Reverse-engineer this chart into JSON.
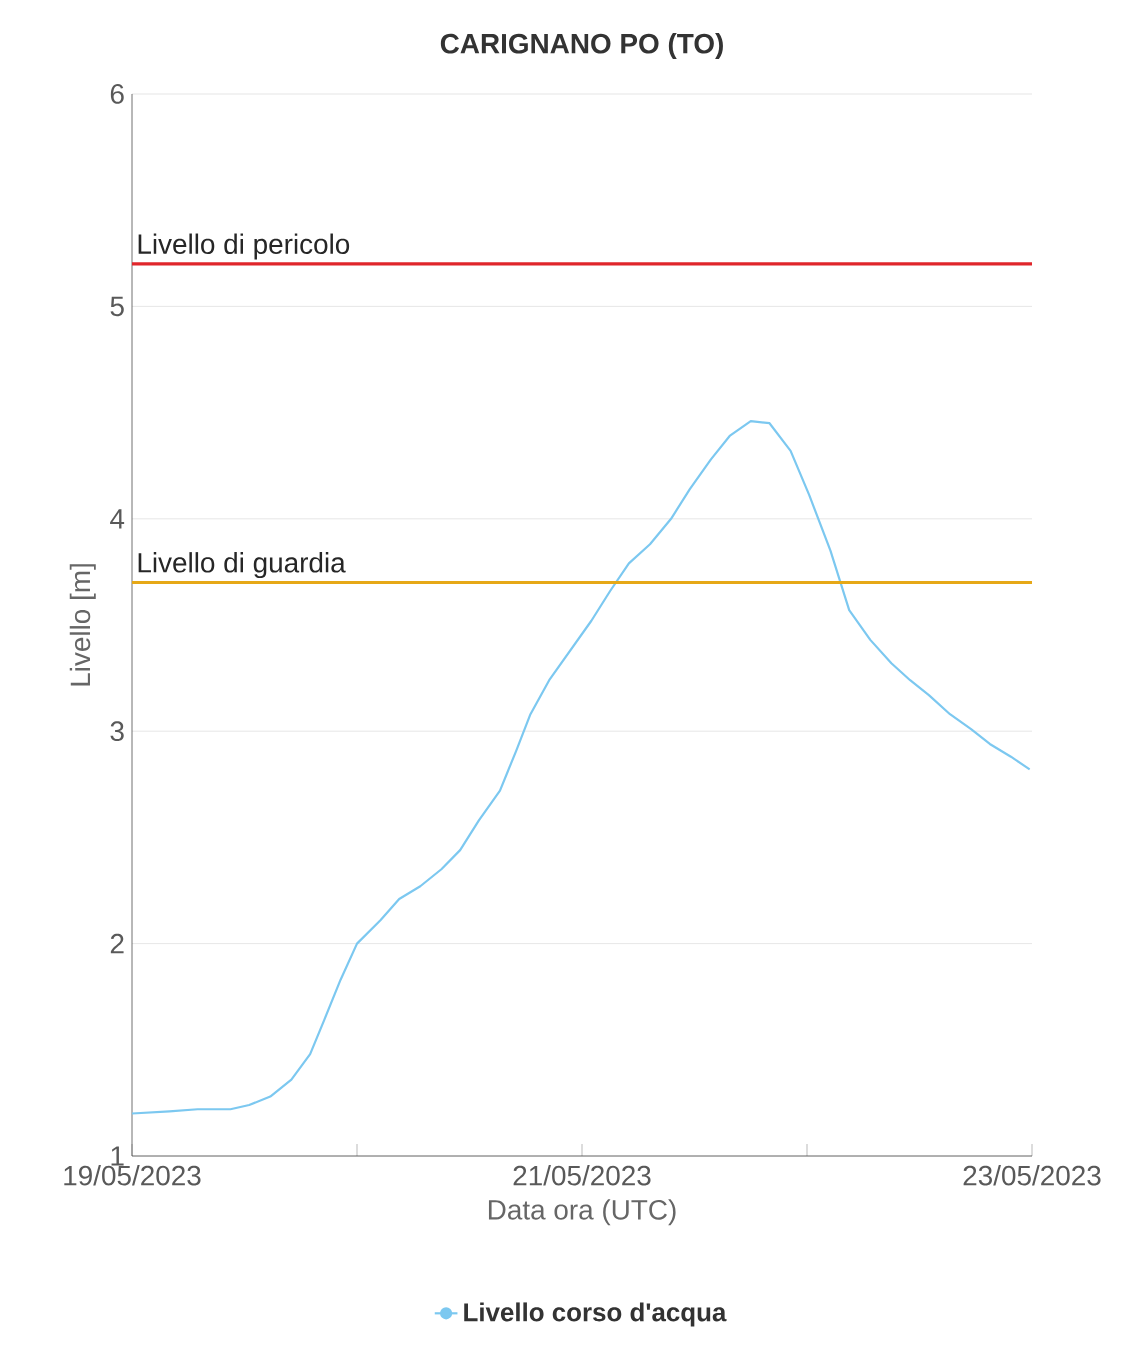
{
  "chart_data": {
    "type": "line",
    "title": "CARIGNANO PO (TO)",
    "xlabel": "Data ora (UTC)",
    "ylabel": "Livello [m]",
    "x": [
      "2023-05-19T00:00",
      "2023-05-19T04:00",
      "2023-05-19T07:00",
      "2023-05-19T10:30",
      "2023-05-19T12:30",
      "2023-05-19T14:45",
      "2023-05-19T17:00",
      "2023-05-19T19:00",
      "2023-05-19T20:30",
      "2023-05-19T22:15",
      "2023-05-20T00:00",
      "2023-05-20T02:30",
      "2023-05-20T04:30",
      "2023-05-20T06:45",
      "2023-05-20T09:00",
      "2023-05-20T11:00",
      "2023-05-20T13:00",
      "2023-05-20T15:15",
      "2023-05-20T17:00",
      "2023-05-20T18:30",
      "2023-05-20T20:30",
      "2023-05-20T22:45",
      "2023-05-21T01:00",
      "2023-05-21T03:00",
      "2023-05-21T05:00",
      "2023-05-21T07:15",
      "2023-05-21T09:30",
      "2023-05-21T11:30",
      "2023-05-21T13:45",
      "2023-05-21T15:45",
      "2023-05-21T18:00",
      "2023-05-21T20:00",
      "2023-05-21T22:15",
      "2023-05-22T00:15",
      "2023-05-22T02:30",
      "2023-05-22T04:30",
      "2023-05-22T06:45",
      "2023-05-22T09:00",
      "2023-05-22T11:00",
      "2023-05-22T13:00",
      "2023-05-22T15:15",
      "2023-05-22T17:30",
      "2023-05-22T19:30",
      "2023-05-22T21:45",
      "2023-05-22T23:45"
    ],
    "series": [
      {
        "name": "Livello corso d'acqua",
        "color": "#7cc8f0",
        "values": [
          1.2,
          1.21,
          1.22,
          1.22,
          1.24,
          1.28,
          1.36,
          1.48,
          1.64,
          1.83,
          2.0,
          2.11,
          2.21,
          2.27,
          2.35,
          2.44,
          2.58,
          2.72,
          2.91,
          3.08,
          3.24,
          3.38,
          3.52,
          3.66,
          3.79,
          3.88,
          4.0,
          4.14,
          4.28,
          4.39,
          4.46,
          4.45,
          4.32,
          4.11,
          3.85,
          3.57,
          3.43,
          3.32,
          3.24,
          3.17,
          3.08,
          3.01,
          2.94,
          2.88,
          2.82
        ]
      }
    ],
    "xlim": [
      "2023-05-19T00:00",
      "2023-05-23T00:00"
    ],
    "xticks": [
      {
        "value": "2023-05-19",
        "label": "19/05/2023"
      },
      {
        "value": "2023-05-20",
        "label": null
      },
      {
        "value": "2023-05-21",
        "label": "21/05/2023"
      },
      {
        "value": "2023-05-22",
        "label": null
      },
      {
        "value": "2023-05-23",
        "label": "23/05/2023"
      }
    ],
    "ylim": [
      1,
      6
    ],
    "yticks": [
      1,
      2,
      3,
      4,
      5,
      6
    ],
    "ref_lines": [
      {
        "axis": "y",
        "value": 5.2,
        "label": "Livello di pericolo",
        "color": "#e0262b"
      },
      {
        "axis": "y",
        "value": 3.7,
        "label": "Livello di guardia",
        "color": "#e6a817"
      }
    ],
    "grid": "y",
    "legend": "bottom"
  }
}
